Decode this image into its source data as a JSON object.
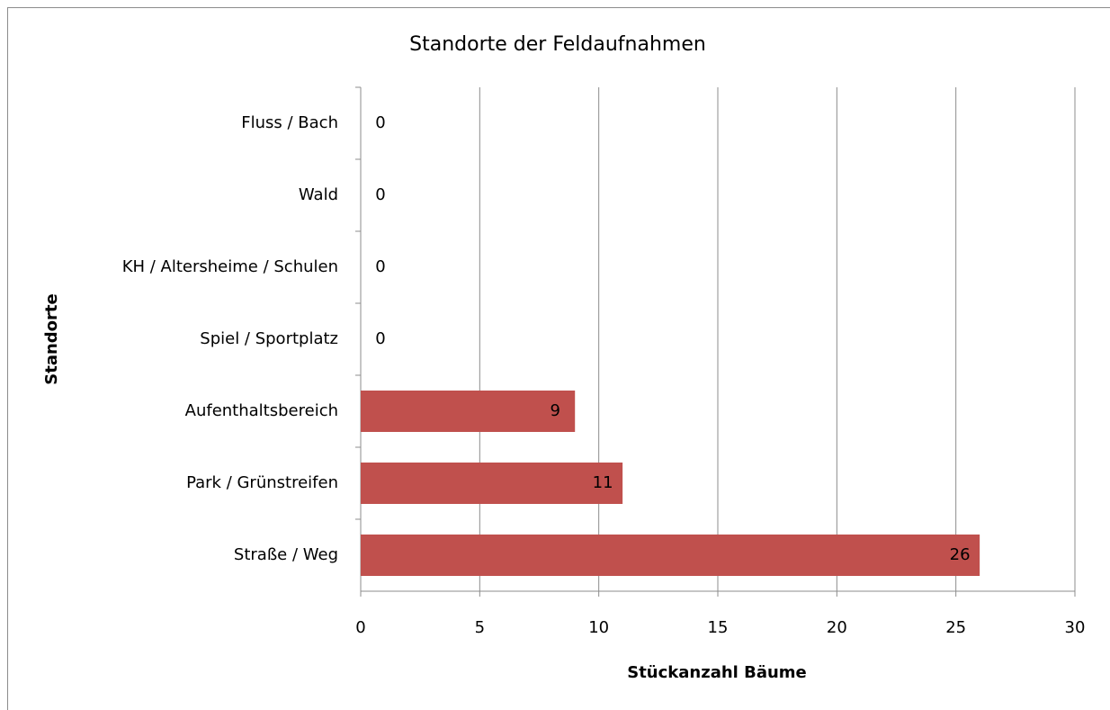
{
  "chart_data": {
    "type": "bar",
    "orientation": "horizontal",
    "title": "Standorte der Feldaufnahmen",
    "x_label": "Stückanzahl Bäume",
    "y_label": "Standorte",
    "categories": [
      "Fluss / Bach",
      "Wald",
      "KH / Altersheime / Schulen",
      "Spiel / Sportplatz",
      "Aufenthaltsbereich",
      "Park / Grünstreifen",
      "Straße / Weg"
    ],
    "values": [
      0,
      0,
      0,
      0,
      9,
      11,
      26
    ],
    "color": "#c0504d",
    "xlim": [
      0,
      30
    ],
    "xticks": [
      0,
      5,
      10,
      15,
      20,
      25,
      30
    ],
    "grid": true
  }
}
